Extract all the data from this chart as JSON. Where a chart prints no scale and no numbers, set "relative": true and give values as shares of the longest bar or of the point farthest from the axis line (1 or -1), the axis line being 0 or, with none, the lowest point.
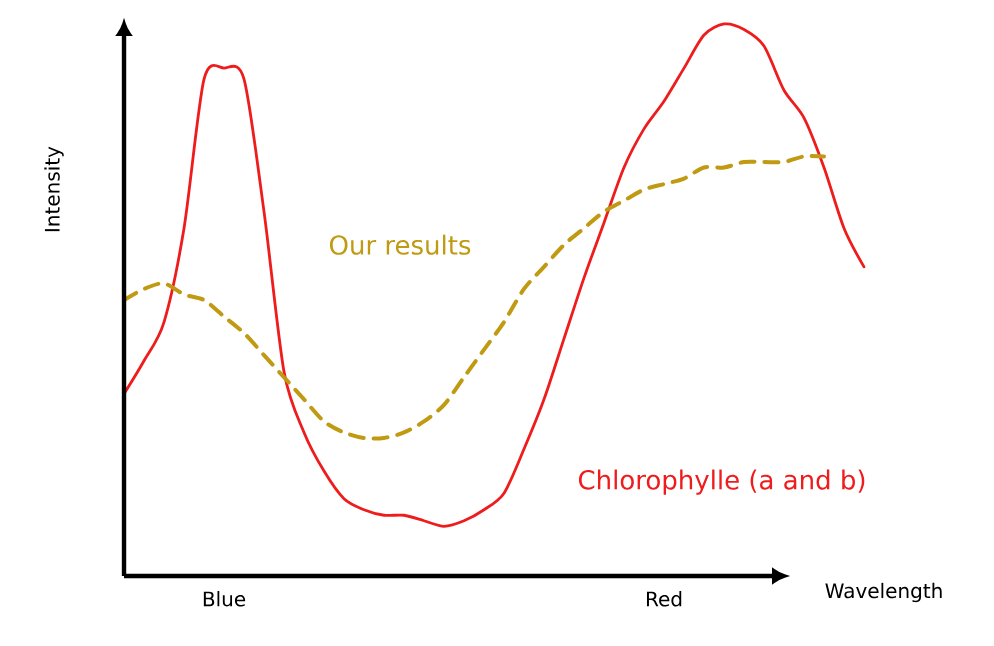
{
  "chart_data": {
    "type": "line",
    "relative": true,
    "xlabel": "Wavelength",
    "ylabel": "Intensity",
    "categories": [
      null,
      null,
      null,
      null,
      null,
      "Blue",
      null,
      null,
      null,
      null,
      null,
      null,
      null,
      null,
      null,
      null,
      null,
      null,
      null,
      null,
      null,
      null,
      null,
      null,
      null,
      null,
      null,
      "Red",
      null,
      null,
      null,
      null,
      null,
      null,
      null,
      null,
      null,
      null
    ],
    "series": [
      {
        "name": "Chlorophylle (a and b)",
        "color": "#ee1c1c",
        "line_style": "solid",
        "values": [
          0.33,
          0.39,
          0.46,
          0.63,
          0.9,
          0.92,
          0.9,
          0.66,
          0.37,
          0.26,
          0.19,
          0.14,
          0.12,
          0.11,
          0.11,
          0.1,
          0.09,
          0.1,
          0.12,
          0.15,
          0.23,
          0.32,
          0.43,
          0.54,
          0.64,
          0.74,
          0.81,
          0.86,
          0.92,
          0.98,
          1,
          0.99,
          0.96,
          0.88,
          0.83,
          0.74,
          0.63,
          0.56
        ]
      },
      {
        "name": "Our results",
        "color": "#c09a12",
        "line_style": "dashed",
        "values": [
          0.5,
          0.52,
          0.53,
          0.51,
          0.5,
          0.47,
          0.44,
          0.4,
          0.36,
          0.32,
          0.28,
          0.26,
          0.25,
          0.25,
          0.26,
          0.28,
          0.31,
          0.36,
          0.41,
          0.46,
          0.52,
          0.56,
          0.6,
          0.63,
          0.66,
          0.68,
          0.7,
          0.71,
          0.72,
          0.74,
          0.74,
          0.75,
          0.75,
          0.75,
          0.76,
          0.76,
          null,
          null
        ]
      }
    ]
  }
}
